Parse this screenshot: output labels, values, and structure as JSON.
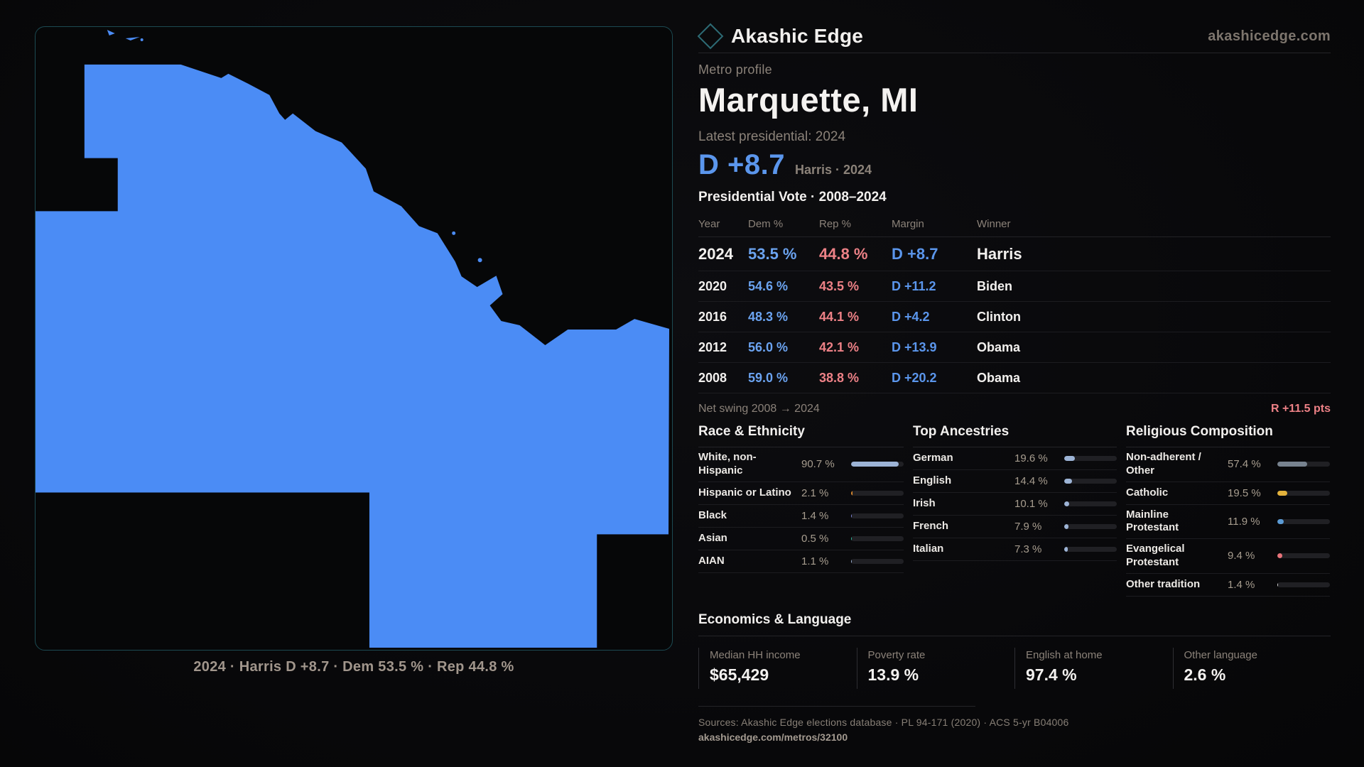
{
  "brand": {
    "name": "Akashic Edge",
    "domain": "akashicedge.com"
  },
  "profile": {
    "kicker": "Metro profile",
    "title": "Marquette, MI",
    "latest_label": "Latest presidential: 2024",
    "hero_margin": "D +8.7",
    "hero_sub": "Harris · 2024"
  },
  "vote_table": {
    "title": "Presidential Vote · 2008–2024",
    "headers": [
      "Year",
      "Dem %",
      "Rep %",
      "Margin",
      "Winner"
    ],
    "rows": [
      {
        "year": "2024",
        "dem": "53.5 %",
        "rep": "44.8 %",
        "margin": "D +8.7",
        "winner": "Harris",
        "latest": true
      },
      {
        "year": "2020",
        "dem": "54.6 %",
        "rep": "43.5 %",
        "margin": "D +11.2",
        "winner": "Biden",
        "latest": false
      },
      {
        "year": "2016",
        "dem": "48.3 %",
        "rep": "44.1 %",
        "margin": "D +4.2",
        "winner": "Clinton",
        "latest": false
      },
      {
        "year": "2012",
        "dem": "56.0 %",
        "rep": "42.1 %",
        "margin": "D +13.9",
        "winner": "Obama",
        "latest": false
      },
      {
        "year": "2008",
        "dem": "59.0 %",
        "rep": "38.8 %",
        "margin": "D +20.2",
        "winner": "Obama",
        "latest": false
      }
    ]
  },
  "net_swing": {
    "label": "Net swing 2008 → 2024",
    "value": "R +11.5 pts"
  },
  "panels": [
    {
      "id": "race-ethnicity",
      "title": "Race & Ethnicity",
      "rows": [
        {
          "label": "White, non-Hispanic",
          "value": "90.7 %",
          "pct": 90.7,
          "color": "#9db4d6"
        },
        {
          "label": "Hispanic or Latino",
          "value": "2.1 %",
          "pct": 2.1,
          "color": "#d8882e"
        },
        {
          "label": "Black",
          "value": "1.4 %",
          "pct": 1.4,
          "color": "#8287e0"
        },
        {
          "label": "Asian",
          "value": "0.5 %",
          "pct": 0.5,
          "color": "#2fbf9f"
        },
        {
          "label": "AIAN",
          "value": "1.1 %",
          "pct": 1.1,
          "color": "#9db4d6"
        }
      ]
    },
    {
      "id": "top-ancestries",
      "title": "Top Ancestries",
      "rows": [
        {
          "label": "German",
          "value": "19.6 %",
          "pct": 19.6,
          "color": "#9db4d6"
        },
        {
          "label": "English",
          "value": "14.4 %",
          "pct": 14.4,
          "color": "#9db4d6"
        },
        {
          "label": "Irish",
          "value": "10.1 %",
          "pct": 10.1,
          "color": "#9db4d6"
        },
        {
          "label": "French",
          "value": "7.9 %",
          "pct": 7.9,
          "color": "#9db4d6"
        },
        {
          "label": "Italian",
          "value": "7.3 %",
          "pct": 7.3,
          "color": "#9db4d6"
        }
      ]
    },
    {
      "id": "religious-composition",
      "title": "Religious Composition",
      "rows": [
        {
          "label": "Non-adherent / Other",
          "value": "57.4 %",
          "pct": 57.4,
          "color": "#77828f"
        },
        {
          "label": "Catholic",
          "value": "19.5 %",
          "pct": 19.5,
          "color": "#e3b23c"
        },
        {
          "label": "Mainline Protestant",
          "value": "11.9 %",
          "pct": 11.9,
          "color": "#5b9bd5"
        },
        {
          "label": "Evangelical Protestant",
          "value": "9.4 %",
          "pct": 9.4,
          "color": "#e8737a"
        },
        {
          "label": "Other tradition",
          "value": "1.4 %",
          "pct": 1.4,
          "color": "#d8d8d8"
        }
      ]
    }
  ],
  "economics": {
    "title": "Economics & Language",
    "stats": [
      {
        "label": "Median HH income",
        "value": "$65,429"
      },
      {
        "label": "Poverty rate",
        "value": "13.9 %"
      },
      {
        "label": "English at home",
        "value": "97.4 %"
      },
      {
        "label": "Other language",
        "value": "2.6 %"
      }
    ]
  },
  "footer": {
    "sources": "Sources: Akashic Edge elections database · PL 94-171 (2020) · ACS 5-yr B04006",
    "permalink": "akashicedge.com/metros/32100"
  },
  "map": {
    "caption": "2024 · Harris D +8.7 · Dem 53.5 % · Rep 44.8 %",
    "fill_color": "#4b8cf5"
  }
}
